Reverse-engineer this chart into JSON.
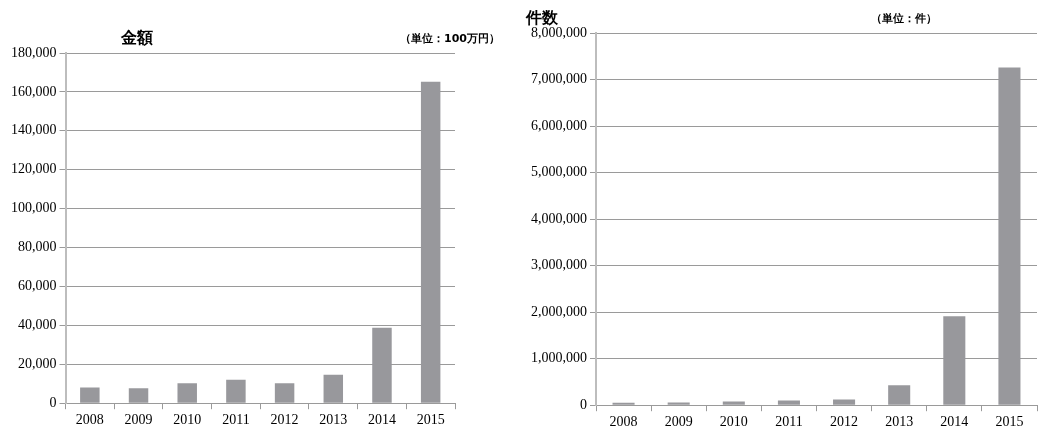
{
  "chart_data": [
    {
      "type": "bar",
      "title": "金額",
      "annotations": [
        "（単位：100万円）"
      ],
      "categories": [
        "2008",
        "2009",
        "2010",
        "2011",
        "2012",
        "2013",
        "2014",
        "2015"
      ],
      "values": [
        8100,
        7700,
        10200,
        12000,
        10300,
        14600,
        38800,
        165200
      ],
      "color": "#98989c",
      "ylim": [
        0,
        180000
      ],
      "yticks": [
        {
          "value": 0,
          "label": "0"
        },
        {
          "value": 20000,
          "label": "20,000"
        },
        {
          "value": 40000,
          "label": "40,000"
        },
        {
          "value": 60000,
          "label": "60,000"
        },
        {
          "value": 80000,
          "label": "80,000"
        },
        {
          "value": 100000,
          "label": "100,000"
        },
        {
          "value": 120000,
          "label": "120,000"
        },
        {
          "value": 140000,
          "label": "140,000"
        },
        {
          "value": 160000,
          "label": "160,000"
        },
        {
          "value": 180000,
          "label": "180,000"
        }
      ],
      "grid": "y"
    },
    {
      "type": "bar",
      "title": "件数",
      "annotations": [
        "（単位：件）"
      ],
      "categories": [
        "2008",
        "2009",
        "2010",
        "2011",
        "2012",
        "2013",
        "2014",
        "2015"
      ],
      "values": [
        50000,
        60000,
        80000,
        100000,
        120000,
        430000,
        1910000,
        7260000
      ],
      "color": "#98989c",
      "ylim": [
        0,
        8000000
      ],
      "yticks": [
        {
          "value": 0,
          "label": "0"
        },
        {
          "value": 1000000,
          "label": "1,000,000"
        },
        {
          "value": 2000000,
          "label": "2,000,000"
        },
        {
          "value": 3000000,
          "label": "3,000,000"
        },
        {
          "value": 4000000,
          "label": "4,000,000"
        },
        {
          "value": 5000000,
          "label": "5,000,000"
        },
        {
          "value": 6000000,
          "label": "6,000,000"
        },
        {
          "value": 7000000,
          "label": "7,000,000"
        },
        {
          "value": 8000000,
          "label": "8,000,000"
        }
      ],
      "grid": "y"
    }
  ]
}
